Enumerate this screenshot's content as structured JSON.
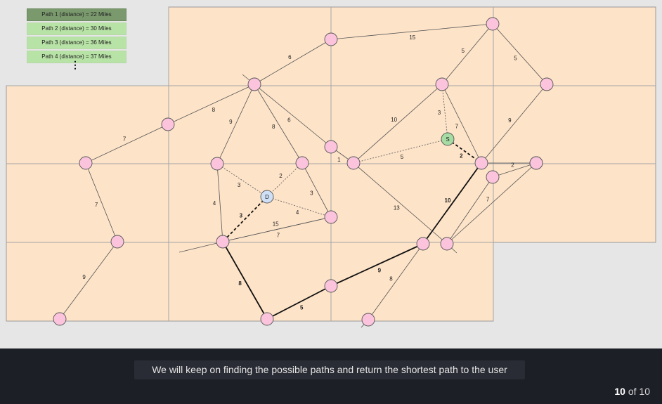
{
  "legend": [
    {
      "label": "Path 1 (distance) = 22 Miles",
      "color": "#7a9a6d",
      "active": true
    },
    {
      "label": "Path 2 (distance) = 30 Miles",
      "color": "#b8e3a6",
      "active": false
    },
    {
      "label": "Path 3 (distance) = 36 Miles",
      "color": "#b8e3a6",
      "active": false
    },
    {
      "label": "Path 4 (distance) = 37 Miles",
      "color": "#b8e3a6",
      "active": false
    }
  ],
  "ellipsis": "⋮",
  "caption": "We will keep on finding the possible paths and return the shortest path to the user",
  "counter": {
    "current": "10",
    "of_text": " of 10"
  },
  "colors": {
    "map_fill": "#fde3c8",
    "node_fill": "#fbc4dc",
    "source_fill": "#a6dba4",
    "dest_fill": "#cfe0f6"
  },
  "graph": {
    "nodes": [
      {
        "id": "n1",
        "label": ""
      },
      {
        "id": "n2",
        "label": ""
      },
      {
        "id": "n3",
        "label": ""
      },
      {
        "id": "n4",
        "label": ""
      },
      {
        "id": "n5",
        "label": ""
      },
      {
        "id": "n6",
        "label": ""
      },
      {
        "id": "n7",
        "label": ""
      },
      {
        "id": "n8",
        "label": ""
      },
      {
        "id": "n9",
        "label": ""
      },
      {
        "id": "n10",
        "label": ""
      },
      {
        "id": "n11",
        "label": ""
      },
      {
        "id": "n12",
        "label": ""
      },
      {
        "id": "n13",
        "label": ""
      },
      {
        "id": "n14",
        "label": ""
      },
      {
        "id": "n15",
        "label": ""
      },
      {
        "id": "n16",
        "label": ""
      },
      {
        "id": "n17",
        "label": ""
      },
      {
        "id": "n18",
        "label": ""
      },
      {
        "id": "n19",
        "label": ""
      },
      {
        "id": "n20",
        "label": ""
      },
      {
        "id": "n21",
        "label": ""
      },
      {
        "id": "n22",
        "label": ""
      },
      {
        "id": "n23",
        "label": ""
      },
      {
        "id": "S",
        "label": "S",
        "kind": "source"
      },
      {
        "id": "D",
        "label": "D",
        "kind": "dest"
      }
    ],
    "edges": [
      {
        "from": "n1",
        "to": "n2",
        "weight": "15",
        "style": "solid"
      },
      {
        "from": "n1",
        "to": "n4",
        "weight": "6",
        "style": "solid"
      },
      {
        "from": "n2",
        "to": "n5",
        "weight": "5",
        "style": "solid"
      },
      {
        "from": "n2",
        "to": "n6",
        "weight": "5",
        "style": "solid"
      },
      {
        "from": "n3",
        "to": "n4",
        "weight": "8",
        "style": "solid"
      },
      {
        "from": "n3",
        "to": "n7",
        "weight": "7",
        "style": "solid"
      },
      {
        "from": "n4",
        "to": "n8",
        "weight": "9",
        "style": "solid"
      },
      {
        "from": "n4",
        "to": "n9",
        "weight": "8",
        "style": "solid"
      },
      {
        "from": "n4",
        "to": "n10",
        "weight": "6",
        "style": "solid"
      },
      {
        "from": "n5",
        "to": "n11",
        "weight": "10",
        "style": "solid"
      },
      {
        "from": "n5",
        "to": "S",
        "weight": "3",
        "style": "dotted"
      },
      {
        "from": "n5",
        "to": "n12",
        "weight": "7",
        "style": "solid"
      },
      {
        "from": "n6",
        "to": "n12",
        "weight": "9",
        "style": "solid"
      },
      {
        "from": "n10",
        "to": "n11",
        "weight": "1",
        "style": "solid"
      },
      {
        "from": "n11",
        "to": "S",
        "weight": "5",
        "style": "dotted"
      },
      {
        "from": "S",
        "to": "n12",
        "weight": "2",
        "style": "bolddash"
      },
      {
        "from": "n12",
        "to": "n20",
        "weight": "10",
        "style": "path"
      },
      {
        "from": "n13",
        "to": "n19",
        "weight": "2",
        "style": "solid"
      },
      {
        "from": "n15",
        "to": "n16",
        "weight": "15",
        "style": "solid"
      },
      {
        "from": "n11",
        "to": "n21",
        "weight": "13",
        "style": "solid"
      },
      {
        "from": "n14",
        "to": "n21",
        "weight": "7",
        "style": "solid"
      },
      {
        "from": "n7",
        "to": "n18",
        "weight": "7",
        "style": "solid"
      },
      {
        "from": "n18",
        "to": "n22",
        "weight": "9",
        "style": "solid"
      },
      {
        "from": "n8",
        "to": "D",
        "weight": "3",
        "style": "dotted"
      },
      {
        "from": "n8",
        "to": "n16",
        "weight": "4",
        "style": "solid"
      },
      {
        "from": "n9",
        "to": "D",
        "weight": "2",
        "style": "dotted"
      },
      {
        "from": "n9",
        "to": "n15",
        "weight": "3",
        "style": "solid"
      },
      {
        "from": "D",
        "to": "n15",
        "weight": "4",
        "style": "dotted"
      },
      {
        "from": "D",
        "to": "n16",
        "weight": "3",
        "style": "bolddash"
      },
      {
        "from": "n16",
        "to": "n15",
        "weight": "7",
        "style": "solid"
      },
      {
        "from": "n16",
        "to": "n17",
        "weight": "8",
        "style": "path"
      },
      {
        "from": "n17",
        "to": "n23",
        "weight": "5",
        "style": "path"
      },
      {
        "from": "n23",
        "to": "n20",
        "weight": "9",
        "style": "path"
      },
      {
        "from": "n20",
        "to": "n24",
        "weight": "8",
        "style": "solid"
      }
    ]
  }
}
